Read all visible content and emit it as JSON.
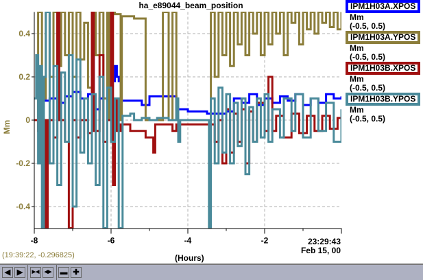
{
  "chart_data": {
    "type": "line",
    "title": "ha_e89044_beam_position",
    "xlabel": "(Hours)",
    "ylabel": "Mm",
    "xlim": [
      -8.0,
      0.0
    ],
    "ylim": [
      -0.5,
      0.5
    ],
    "x_ticks": [
      -8,
      -6,
      -4,
      -2
    ],
    "x_tick_labels": [
      "-8",
      "-6",
      "-4",
      "-2"
    ],
    "y_ticks": [
      0.4,
      0.2,
      0,
      -0.2,
      -0.4
    ],
    "y_tick_labels": [
      "0.4",
      "0.2",
      "0",
      "-0.2",
      "-0.4"
    ],
    "grid": true,
    "end_time": [
      "23:29:43",
      "Feb 15, 00"
    ],
    "legend_placement": "right",
    "series": [
      {
        "name": "IPM1H03A.XPOS",
        "unit": "Mm",
        "range": "(-0.5, 0.5)",
        "color": "#0000ff",
        "points": [
          [
            -8,
            0.1
          ],
          [
            -7.9,
            0.12
          ],
          [
            -7.8,
            0.09
          ],
          [
            -7.6,
            0.1
          ],
          [
            -7.4,
            0.08
          ],
          [
            -7.2,
            0.11
          ],
          [
            -7,
            0.13
          ],
          [
            -6.8,
            0.1
          ],
          [
            -6.6,
            0.12
          ],
          [
            -6.5,
            0.38
          ],
          [
            -6.45,
            0.05
          ],
          [
            -6.3,
            0.1
          ],
          [
            -6.1,
            0.09
          ],
          [
            -6,
            0.18
          ],
          [
            -5.9,
            0.25
          ],
          [
            -5.85,
            0.2
          ],
          [
            -5.8,
            0.18
          ],
          [
            -5.75,
            0.09
          ],
          [
            -5.5,
            0.09
          ],
          [
            -5.2,
            0.07
          ],
          [
            -5,
            0.11
          ],
          [
            -4.7,
            0.11
          ],
          [
            -4.3,
            0.05
          ],
          [
            -4,
            0.04
          ],
          [
            -3.5,
            0.03
          ],
          [
            -3,
            0.04
          ],
          [
            -2.8,
            0.1
          ],
          [
            -2.6,
            0.08
          ],
          [
            -2.4,
            0.12
          ],
          [
            -2.2,
            0.07
          ],
          [
            -2,
            0.1
          ],
          [
            -1.8,
            0.08
          ],
          [
            -1.6,
            0.11
          ],
          [
            -1.4,
            0.09
          ],
          [
            -1.2,
            0.12
          ],
          [
            -1,
            0.07
          ],
          [
            -0.8,
            0.1
          ],
          [
            -0.6,
            0.08
          ],
          [
            -0.4,
            0.12
          ],
          [
            -0.2,
            0.1
          ],
          [
            0,
            0.11
          ]
        ]
      },
      {
        "name": "IPM1H03A.YPOS",
        "unit": "Mm",
        "range": "(-0.5, 0.5)",
        "color": "#8b7d3a",
        "points": [
          [
            -8,
            0.0
          ],
          [
            -7.9,
            0.5
          ],
          [
            -7.8,
            0.1
          ],
          [
            -7.7,
            0.5
          ],
          [
            -7.6,
            0.2
          ],
          [
            -7.5,
            0.5
          ],
          [
            -7.4,
            0.25
          ],
          [
            -7.3,
            0.5
          ],
          [
            -7.2,
            0.3
          ],
          [
            -7.1,
            0.5
          ],
          [
            -7,
            0.2
          ],
          [
            -6.9,
            0.5
          ],
          [
            -6.8,
            0.28
          ],
          [
            -6.7,
            0.45
          ],
          [
            -6.6,
            0.15
          ],
          [
            -6.5,
            0.5
          ],
          [
            -6.4,
            0.3
          ],
          [
            -6.3,
            0.5
          ],
          [
            -6.2,
            0.1
          ],
          [
            -6.1,
            0.5
          ],
          [
            -6.05,
            0.0
          ],
          [
            -6,
            0.5
          ],
          [
            -5.9,
            0.49
          ],
          [
            -5.75,
            0.49
          ],
          [
            -5.75,
            0.0
          ],
          [
            -5.72,
            0.48
          ],
          [
            -5.4,
            0.48
          ],
          [
            -5.4,
            0.47
          ],
          [
            -5.1,
            0.47
          ],
          [
            -5.1,
            0.0
          ],
          [
            -4.65,
            0.0
          ],
          [
            -4.65,
            0.5
          ],
          [
            -4.55,
            0.5
          ],
          [
            -4.5,
            0.0
          ],
          [
            -4.4,
            0.5
          ],
          [
            -4.3,
            0.0
          ],
          [
            -3.5,
            0.0
          ],
          [
            -3.4,
            0.5
          ],
          [
            -3.3,
            0.2
          ],
          [
            -3.2,
            0.5
          ],
          [
            -3.1,
            0.3
          ],
          [
            -3,
            0.5
          ],
          [
            -2.9,
            0.25
          ],
          [
            -2.8,
            0.5
          ],
          [
            -2.7,
            0.35
          ],
          [
            -2.6,
            0.5
          ],
          [
            -2.5,
            0.3
          ],
          [
            -2.4,
            0.5
          ],
          [
            -2.3,
            0.4
          ],
          [
            -2.2,
            0.5
          ],
          [
            -2.1,
            0.3
          ],
          [
            -2,
            0.5
          ],
          [
            -1.9,
            0.35
          ],
          [
            -1.8,
            0.5
          ],
          [
            -1.7,
            0.4
          ],
          [
            -1.6,
            0.5
          ],
          [
            -1.5,
            0.3
          ],
          [
            -1.4,
            0.5
          ],
          [
            -1.3,
            0.45
          ],
          [
            -1.2,
            0.5
          ],
          [
            -1.1,
            0.35
          ],
          [
            -1,
            0.5
          ],
          [
            -0.9,
            0.42
          ],
          [
            -0.8,
            0.5
          ],
          [
            -0.7,
            0.4
          ],
          [
            -0.6,
            0.5
          ],
          [
            -0.5,
            0.45
          ],
          [
            -0.4,
            0.5
          ],
          [
            -0.3,
            0.43
          ],
          [
            -0.2,
            0.5
          ],
          [
            -0.1,
            0.42
          ],
          [
            0,
            0.5
          ]
        ]
      },
      {
        "name": "IPM1H03B.XPOS",
        "unit": "Mm",
        "range": "(-0.5, 0.5)",
        "color": "#a01010",
        "points": [
          [
            -8,
            0.0
          ],
          [
            -7.9,
            -0.05
          ],
          [
            -7.8,
            0.0
          ],
          [
            -7.7,
            -0.5
          ],
          [
            -7.65,
            0.0
          ],
          [
            -7.5,
            -0.08
          ],
          [
            -7.4,
            0.5
          ],
          [
            -7.35,
            0.0
          ],
          [
            -7.2,
            -0.1
          ],
          [
            -7.1,
            -0.5
          ],
          [
            -7,
            0.0
          ],
          [
            -6.9,
            -0.08
          ],
          [
            -6.8,
            0.0
          ],
          [
            -6.6,
            -0.06
          ],
          [
            -6.5,
            0.5
          ],
          [
            -6.45,
            -0.05
          ],
          [
            -6.3,
            0.3
          ],
          [
            -6.2,
            -0.1
          ],
          [
            -6.1,
            0.0
          ],
          [
            -6.0,
            0.5
          ],
          [
            -5.95,
            -0.3
          ],
          [
            -5.9,
            0.1
          ],
          [
            -5.85,
            -0.05
          ],
          [
            -5.75,
            -0.02
          ],
          [
            -5.5,
            -0.05
          ],
          [
            -5.2,
            -0.05
          ],
          [
            -5.1,
            -0.08
          ],
          [
            -4.9,
            -0.08
          ],
          [
            -4.9,
            -0.15
          ],
          [
            -4.85,
            -0.02
          ],
          [
            -4.6,
            -0.02
          ],
          [
            -4.4,
            -0.05
          ],
          [
            -4.3,
            -0.02
          ],
          [
            -3.6,
            -0.02
          ],
          [
            -3.3,
            -0.1
          ],
          [
            -3.2,
            0.0
          ],
          [
            -3.1,
            -0.2
          ],
          [
            -3,
            0.05
          ],
          [
            -2.9,
            -0.15
          ],
          [
            -2.8,
            0.03
          ],
          [
            -2.7,
            -0.1
          ],
          [
            -2.6,
            0.05
          ],
          [
            -2.5,
            -0.2
          ],
          [
            -2.4,
            0.04
          ],
          [
            -2.3,
            -0.1
          ],
          [
            -2.2,
            0.08
          ],
          [
            -2,
            -0.05
          ],
          [
            -1.9,
            0.2
          ],
          [
            -1.8,
            -0.05
          ],
          [
            -1.7,
            0.02
          ],
          [
            -1.5,
            -0.08
          ],
          [
            -1.3,
            0.03
          ],
          [
            -1.1,
            -0.06
          ],
          [
            -0.9,
            0.02
          ],
          [
            -0.7,
            -0.05
          ],
          [
            -0.5,
            0.02
          ],
          [
            -0.3,
            -0.04
          ],
          [
            -0.1,
            0.01
          ],
          [
            0,
            0.0
          ]
        ]
      },
      {
        "name": "IPM1H03B.YPOS",
        "unit": "Mm",
        "range": "(-0.5, 0.5)",
        "color": "#4a8a9a",
        "points": [
          [
            -8,
            0.1
          ],
          [
            -7.95,
            0.3
          ],
          [
            -7.9,
            -0.2
          ],
          [
            -7.85,
            0.25
          ],
          [
            -7.8,
            -0.5
          ],
          [
            -7.75,
            0.2
          ],
          [
            -7.7,
            0.5
          ],
          [
            -7.6,
            -0.2
          ],
          [
            -7.5,
            0.25
          ],
          [
            -7.4,
            -0.3
          ],
          [
            -7.3,
            0.22
          ],
          [
            -7.2,
            -0.1
          ],
          [
            -7.1,
            0.3
          ],
          [
            -7,
            -0.4
          ],
          [
            -6.9,
            0.28
          ],
          [
            -6.8,
            -0.15
          ],
          [
            -6.7,
            0.1
          ],
          [
            -6.6,
            -0.2
          ],
          [
            -6.5,
            0.12
          ],
          [
            -6.4,
            -0.3
          ],
          [
            -6.3,
            0.2
          ],
          [
            -6.2,
            -0.5
          ],
          [
            -6.1,
            0.15
          ],
          [
            -6.0,
            -0.1
          ],
          [
            -5.9,
            0.1
          ],
          [
            -5.8,
            -0.5
          ],
          [
            -5.7,
            0.02
          ],
          [
            -5.5,
            0.03
          ],
          [
            -5.4,
            0.0
          ],
          [
            -5.2,
            0.01
          ],
          [
            -5.0,
            0.0
          ],
          [
            -4.8,
            0.01
          ],
          [
            -4.5,
            0.0
          ],
          [
            -4.3,
            0.1
          ],
          [
            -4.25,
            -0.1
          ],
          [
            -4.2,
            0.0
          ],
          [
            -3.5,
            0.0
          ],
          [
            -3.45,
            -0.5
          ],
          [
            -3.4,
            0.1
          ],
          [
            -3.3,
            -0.2
          ],
          [
            -3.2,
            0.15
          ],
          [
            -3.1,
            -0.15
          ],
          [
            -3,
            0.12
          ],
          [
            -2.9,
            -0.2
          ],
          [
            -2.8,
            0.08
          ],
          [
            -2.7,
            -0.12
          ],
          [
            -2.6,
            0.1
          ],
          [
            -2.5,
            -0.25
          ],
          [
            -2.4,
            0.06
          ],
          [
            -2.3,
            -0.1
          ],
          [
            -2.2,
            0.1
          ],
          [
            -2.1,
            -0.08
          ],
          [
            -2,
            0.12
          ],
          [
            -1.9,
            -0.1
          ],
          [
            -1.8,
            0.05
          ],
          [
            -1.6,
            -0.08
          ],
          [
            -1.5,
            0.1
          ],
          [
            -1.3,
            -0.05
          ],
          [
            -1.2,
            0.12
          ],
          [
            -1.0,
            -0.08
          ],
          [
            -0.8,
            0.1
          ],
          [
            -0.6,
            -0.05
          ],
          [
            -0.4,
            0.08
          ],
          [
            -0.2,
            -0.1
          ],
          [
            0,
            0.05
          ]
        ]
      }
    ]
  },
  "cursor_readout": "(19:39:22, -0.296825)",
  "toolbar": [
    {
      "name": "scroll-left-button",
      "glyph": "◀"
    },
    {
      "name": "scroll-right-button",
      "glyph": "▶"
    },
    {
      "name": "zoom-in-x-button",
      "glyph": "▶◀"
    },
    {
      "name": "zoom-out-x-button",
      "glyph": "◀▶"
    },
    {
      "name": "fit-button",
      "glyph": "▬"
    },
    {
      "name": "add-button",
      "glyph": "✚"
    }
  ],
  "colors": {
    "axis_label": "#8b7d3a",
    "grid": "#b0b0b0"
  }
}
